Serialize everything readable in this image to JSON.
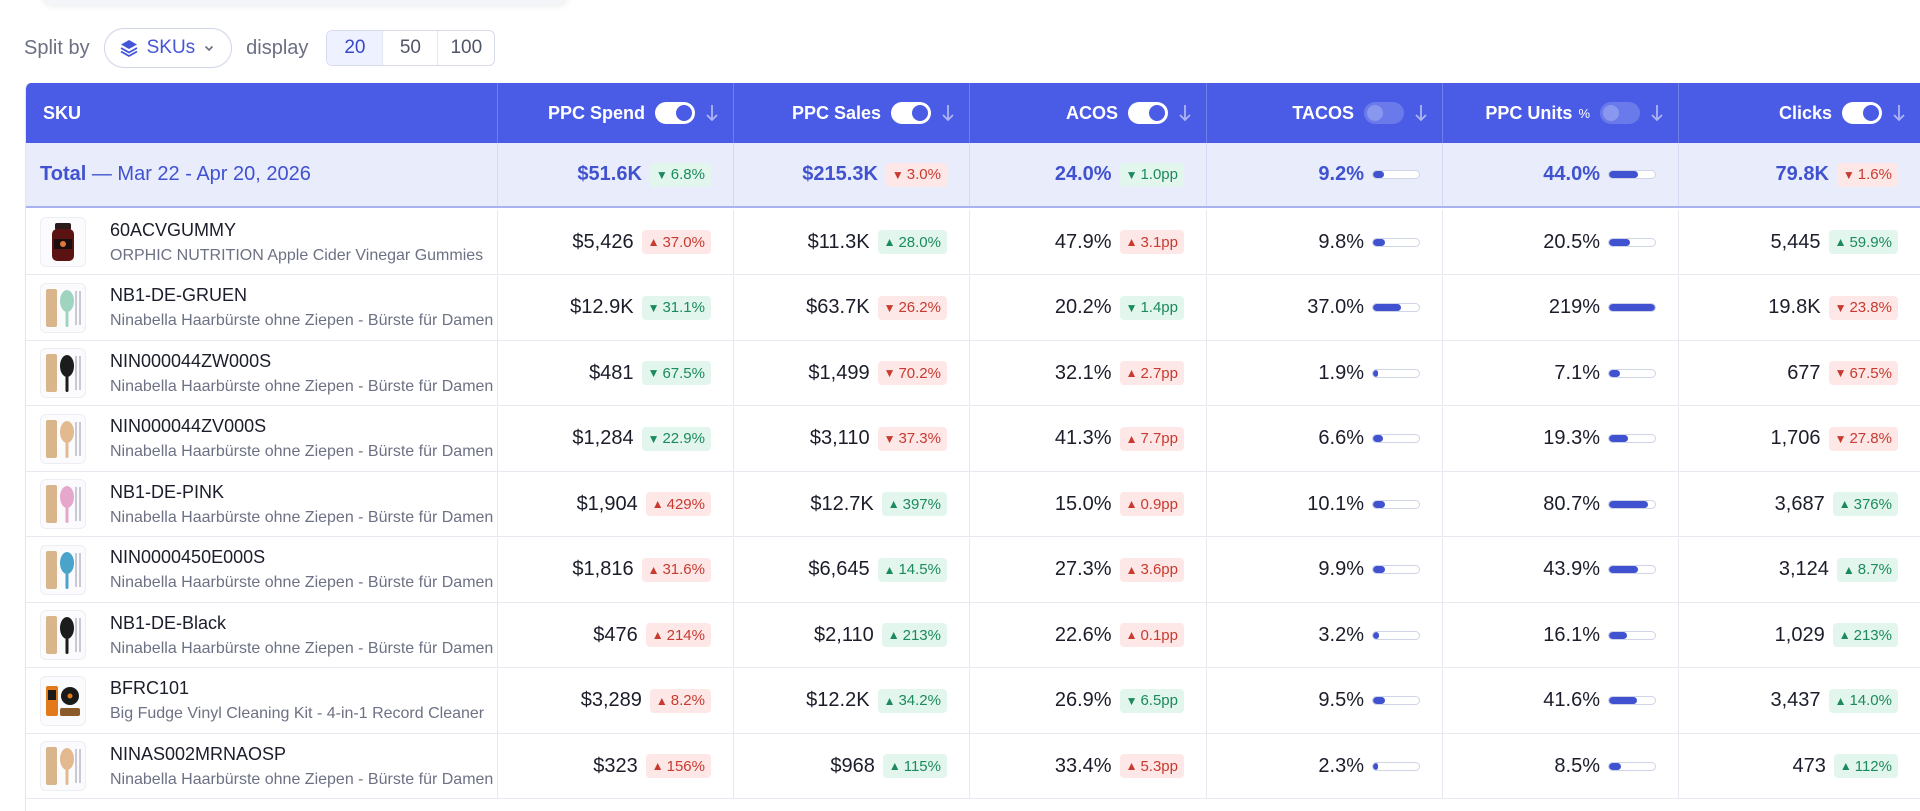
{
  "toolbar": {
    "split_label": "Split by",
    "split_value": "SKUs",
    "display_label": "display",
    "display_options": [
      "20",
      "50",
      "100"
    ],
    "display_selected": "20"
  },
  "colors": {
    "accent": "#4a5ce6",
    "good": "#1b8a5c",
    "bad": "#c83a30"
  },
  "columns": [
    {
      "label": "SKU"
    },
    {
      "label": "PPC Spend",
      "toggle": "on",
      "sort": "arrow-down-icon"
    },
    {
      "label": "PPC Sales",
      "toggle": "on",
      "sort": "arrow-down-icon"
    },
    {
      "label": "ACOS",
      "toggle": "on",
      "sort": "arrow-down-icon"
    },
    {
      "label": "TACOS",
      "toggle": "off",
      "sort": "arrow-down-icon"
    },
    {
      "label": "PPC Units",
      "suffix": "%",
      "toggle": "off",
      "sort": "arrow-down-icon"
    },
    {
      "label": "Clicks",
      "toggle": "on",
      "sort": "arrow-down-icon"
    }
  ],
  "total": {
    "label": "Total",
    "range": "— Mar 22 - Apr 20, 2026",
    "ppc_spend": {
      "value": "$51.6K",
      "delta": "6.8%",
      "dir": "down",
      "tone": "good"
    },
    "ppc_sales": {
      "value": "$215.3K",
      "delta": "3.0%",
      "dir": "down",
      "tone": "bad"
    },
    "acos": {
      "value": "24.0%",
      "delta": "1.0pp",
      "dir": "down",
      "tone": "good"
    },
    "tacos": {
      "value": "9.2%",
      "fill": 0.24
    },
    "ppc_units": {
      "value": "44.0%",
      "fill": 0.62
    },
    "clicks": {
      "value": "79.8K",
      "delta": "1.6%",
      "dir": "down",
      "tone": "bad"
    }
  },
  "rows": [
    {
      "sku": "60ACVGUMMY",
      "name": "ORPHIC NUTRITION Apple Cider Vinegar Gummies",
      "thumb": "gummy-bottle-icon",
      "ppc_spend": {
        "value": "$5,426",
        "delta": "37.0%",
        "dir": "up",
        "tone": "bad"
      },
      "ppc_sales": {
        "value": "$11.3K",
        "delta": "28.0%",
        "dir": "up",
        "tone": "good"
      },
      "acos": {
        "value": "47.9%",
        "delta": "3.1pp",
        "dir": "up",
        "tone": "bad"
      },
      "tacos": {
        "value": "9.8%",
        "fill": 0.25
      },
      "ppc_units": {
        "value": "20.5%",
        "fill": 0.45
      },
      "clicks": {
        "value": "5,445",
        "delta": "59.9%",
        "dir": "up",
        "tone": "good"
      }
    },
    {
      "sku": "NB1-DE-GRUEN",
      "name": "Ninabella Haarbürste ohne Ziepen - Bürste für Damen",
      "thumb": "hairbrush-green-icon",
      "ppc_spend": {
        "value": "$12.9K",
        "delta": "31.1%",
        "dir": "down",
        "tone": "good"
      },
      "ppc_sales": {
        "value": "$63.7K",
        "delta": "26.2%",
        "dir": "down",
        "tone": "bad"
      },
      "acos": {
        "value": "20.2%",
        "delta": "1.4pp",
        "dir": "down",
        "tone": "good"
      },
      "tacos": {
        "value": "37.0%",
        "fill": 0.6
      },
      "ppc_units": {
        "value": "219%",
        "fill": 1.0
      },
      "clicks": {
        "value": "19.8K",
        "delta": "23.8%",
        "dir": "down",
        "tone": "bad"
      }
    },
    {
      "sku": "NIN000044ZW000S",
      "name": "Ninabella Haarbürste ohne Ziepen - Bürste für Damen",
      "thumb": "hairbrush-black-icon",
      "ppc_spend": {
        "value": "$481",
        "delta": "67.5%",
        "dir": "down",
        "tone": "good"
      },
      "ppc_sales": {
        "value": "$1,499",
        "delta": "70.2%",
        "dir": "down",
        "tone": "bad"
      },
      "acos": {
        "value": "32.1%",
        "delta": "2.7pp",
        "dir": "up",
        "tone": "bad"
      },
      "tacos": {
        "value": "1.9%",
        "fill": 0.1
      },
      "ppc_units": {
        "value": "7.1%",
        "fill": 0.24
      },
      "clicks": {
        "value": "677",
        "delta": "67.5%",
        "dir": "down",
        "tone": "bad"
      }
    },
    {
      "sku": "NIN000044ZV000S",
      "name": "Ninabella Haarbürste ohne Ziepen - Bürste für Damen",
      "thumb": "hairbrush-beige-icon",
      "ppc_spend": {
        "value": "$1,284",
        "delta": "22.9%",
        "dir": "down",
        "tone": "good"
      },
      "ppc_sales": {
        "value": "$3,110",
        "delta": "37.3%",
        "dir": "down",
        "tone": "bad"
      },
      "acos": {
        "value": "41.3%",
        "delta": "7.7pp",
        "dir": "up",
        "tone": "bad"
      },
      "tacos": {
        "value": "6.6%",
        "fill": 0.22
      },
      "ppc_units": {
        "value": "19.3%",
        "fill": 0.42
      },
      "clicks": {
        "value": "1,706",
        "delta": "27.8%",
        "dir": "down",
        "tone": "bad"
      }
    },
    {
      "sku": "NB1-DE-PINK",
      "name": "Ninabella Haarbürste ohne Ziepen - Bürste für Damen",
      "thumb": "hairbrush-pink-icon",
      "ppc_spend": {
        "value": "$1,904",
        "delta": "429%",
        "dir": "up",
        "tone": "bad"
      },
      "ppc_sales": {
        "value": "$12.7K",
        "delta": "397%",
        "dir": "up",
        "tone": "good"
      },
      "acos": {
        "value": "15.0%",
        "delta": "0.9pp",
        "dir": "up",
        "tone": "bad"
      },
      "tacos": {
        "value": "10.1%",
        "fill": 0.26
      },
      "ppc_units": {
        "value": "80.7%",
        "fill": 0.85
      },
      "clicks": {
        "value": "3,687",
        "delta": "376%",
        "dir": "up",
        "tone": "good"
      }
    },
    {
      "sku": "NIN0000450E000S",
      "name": "Ninabella Haarbürste ohne Ziepen - Bürste für Damen",
      "thumb": "hairbrush-blue-icon",
      "ppc_spend": {
        "value": "$1,816",
        "delta": "31.6%",
        "dir": "up",
        "tone": "bad"
      },
      "ppc_sales": {
        "value": "$6,645",
        "delta": "14.5%",
        "dir": "up",
        "tone": "good"
      },
      "acos": {
        "value": "27.3%",
        "delta": "3.6pp",
        "dir": "up",
        "tone": "bad"
      },
      "tacos": {
        "value": "9.9%",
        "fill": 0.25
      },
      "ppc_units": {
        "value": "43.9%",
        "fill": 0.62
      },
      "clicks": {
        "value": "3,124",
        "delta": "8.7%",
        "dir": "up",
        "tone": "good"
      }
    },
    {
      "sku": "NB1-DE-Black",
      "name": "Ninabella Haarbürste ohne Ziepen - Bürste für Damen",
      "thumb": "hairbrush-black-icon",
      "ppc_spend": {
        "value": "$476",
        "delta": "214%",
        "dir": "up",
        "tone": "bad"
      },
      "ppc_sales": {
        "value": "$2,110",
        "delta": "213%",
        "dir": "up",
        "tone": "good"
      },
      "acos": {
        "value": "22.6%",
        "delta": "0.1pp",
        "dir": "up",
        "tone": "bad"
      },
      "tacos": {
        "value": "3.2%",
        "fill": 0.14
      },
      "ppc_units": {
        "value": "16.1%",
        "fill": 0.4
      },
      "clicks": {
        "value": "1,029",
        "delta": "213%",
        "dir": "up",
        "tone": "good"
      }
    },
    {
      "sku": "BFRC101",
      "name": "Big Fudge Vinyl Cleaning Kit - 4-in-1 Record Cleaner",
      "thumb": "vinyl-kit-icon",
      "ppc_spend": {
        "value": "$3,289",
        "delta": "8.2%",
        "dir": "up",
        "tone": "bad"
      },
      "ppc_sales": {
        "value": "$12.2K",
        "delta": "34.2%",
        "dir": "up",
        "tone": "good"
      },
      "acos": {
        "value": "26.9%",
        "delta": "6.5pp",
        "dir": "down",
        "tone": "good"
      },
      "tacos": {
        "value": "9.5%",
        "fill": 0.25
      },
      "ppc_units": {
        "value": "41.6%",
        "fill": 0.6
      },
      "clicks": {
        "value": "3,437",
        "delta": "14.0%",
        "dir": "up",
        "tone": "good"
      }
    },
    {
      "sku": "NINAS002MRNAOSP",
      "name": "Ninabella Haarbürste ohne Ziepen - Bürste für Damen",
      "thumb": "hairbrush-beige-icon",
      "ppc_spend": {
        "value": "$323",
        "delta": "156%",
        "dir": "up",
        "tone": "bad"
      },
      "ppc_sales": {
        "value": "$968",
        "delta": "115%",
        "dir": "up",
        "tone": "good"
      },
      "acos": {
        "value": "33.4%",
        "delta": "5.3pp",
        "dir": "up",
        "tone": "bad"
      },
      "tacos": {
        "value": "2.3%",
        "fill": 0.1
      },
      "ppc_units": {
        "value": "8.5%",
        "fill": 0.26
      },
      "clicks": {
        "value": "473",
        "delta": "112%",
        "dir": "up",
        "tone": "good"
      }
    }
  ]
}
